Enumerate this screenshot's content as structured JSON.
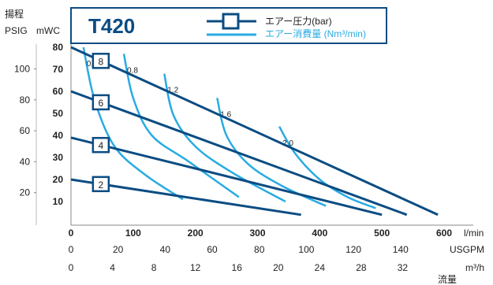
{
  "header": {
    "y_title": "揚程",
    "unit_psig": "PSIG",
    "unit_mwc": "mWC",
    "model": "T420",
    "legend_pressure": "エアー圧力(bar)",
    "legend_flow": "エアー消費量 (Nm³/min)"
  },
  "chart_data": {
    "type": "line",
    "title": "T420",
    "xlabel": "流量",
    "ylabel": "揚程",
    "xlim": [
      0,
      600
    ],
    "ylim_mwc": [
      0,
      80
    ],
    "ylim_psig": [
      0,
      114
    ],
    "x_units": [
      "l/min",
      "USGPM",
      "m³/h"
    ],
    "x_ticks_lpm": [
      0,
      100,
      200,
      300,
      400,
      500,
      600
    ],
    "x_ticks_usgpm": [
      0,
      20,
      40,
      60,
      80,
      100,
      120,
      140
    ],
    "x_ticks_m3h": [
      0,
      4,
      8,
      12,
      16,
      20,
      24,
      28,
      32
    ],
    "y_ticks_mwc": [
      10,
      20,
      30,
      40,
      50,
      60,
      70,
      80
    ],
    "y_ticks_psig": [
      20,
      40,
      60,
      80,
      100
    ],
    "legend": {
      "pressure": "エアー圧力(bar)",
      "flow": "エアー消費量 (Nm³/min)"
    },
    "series": [
      {
        "name": "8",
        "kind": "air_pressure_bar",
        "points": [
          [
            0,
            80
          ],
          [
            590,
            4
          ]
        ]
      },
      {
        "name": "6",
        "kind": "air_pressure_bar",
        "points": [
          [
            0,
            60
          ],
          [
            540,
            4
          ]
        ]
      },
      {
        "name": "4",
        "kind": "air_pressure_bar",
        "points": [
          [
            0,
            39
          ],
          [
            500,
            4
          ]
        ]
      },
      {
        "name": "2",
        "kind": "air_pressure_bar",
        "points": [
          [
            0,
            20
          ],
          [
            370,
            4
          ]
        ]
      },
      {
        "name": "0.4",
        "kind": "air_consumption_nm3min",
        "points": [
          [
            20,
            80
          ],
          [
            38,
            56
          ],
          [
            70,
            35
          ],
          [
            120,
            22
          ],
          [
            180,
            11
          ]
        ]
      },
      {
        "name": "0.8",
        "kind": "air_consumption_nm3min",
        "points": [
          [
            85,
            77
          ],
          [
            100,
            57
          ],
          [
            130,
            40
          ],
          [
            190,
            28
          ],
          [
            270,
            12
          ]
        ]
      },
      {
        "name": "1.2",
        "kind": "air_consumption_nm3min",
        "points": [
          [
            150,
            68
          ],
          [
            165,
            49
          ],
          [
            200,
            35
          ],
          [
            260,
            23
          ],
          [
            345,
            10
          ]
        ]
      },
      {
        "name": "1.6",
        "kind": "air_consumption_nm3min",
        "points": [
          [
            235,
            57
          ],
          [
            250,
            40
          ],
          [
            285,
            27
          ],
          [
            340,
            17
          ],
          [
            410,
            8
          ]
        ]
      },
      {
        "name": "2.0",
        "kind": "air_consumption_nm3min",
        "points": [
          [
            335,
            44
          ],
          [
            360,
            32
          ],
          [
            400,
            20
          ],
          [
            445,
            12
          ],
          [
            490,
            7
          ]
        ]
      }
    ],
    "grid": false,
    "legend_position": "top"
  },
  "colors": {
    "pressure_line": "#0b4c82",
    "flow_line": "#29abe2",
    "frame": "#0b4c82",
    "label_box_fill": "#ffffff"
  }
}
